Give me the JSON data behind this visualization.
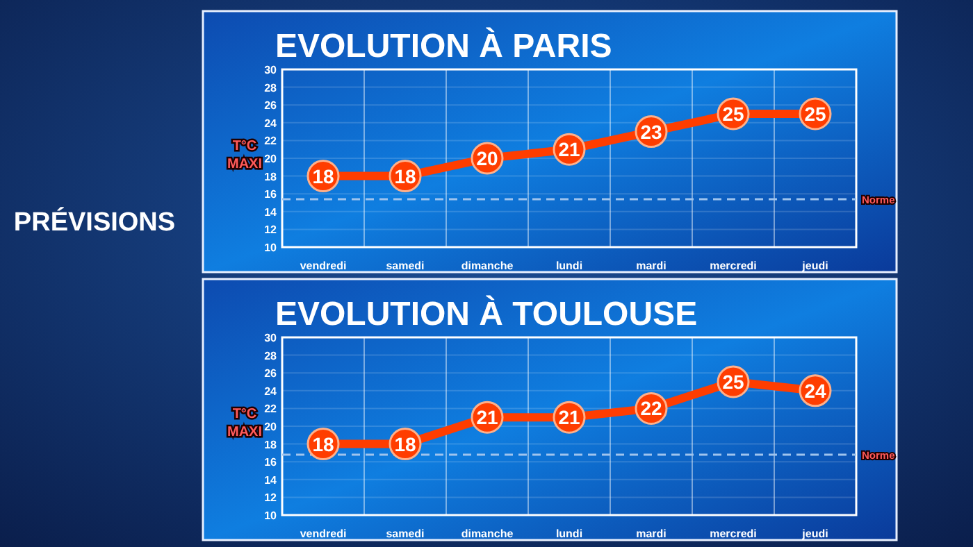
{
  "chart_data": [
    {
      "type": "line",
      "title": "EVOLUTION À PARIS",
      "ylabel": "T°C MAXI",
      "annotations": [
        "PRÉVISIONS"
      ],
      "categories": [
        "vendredi",
        "samedi",
        "dimanche",
        "lundi",
        "mardi",
        "mercredi",
        "jeudi"
      ],
      "series": [
        {
          "color": "#ff3d00",
          "values": [
            18,
            18,
            20,
            21,
            23,
            25,
            25
          ]
        }
      ],
      "ylim": [
        10,
        30
      ],
      "yticks": [
        10,
        12,
        14,
        16,
        18,
        20,
        22,
        24,
        26,
        28,
        30
      ],
      "grid": true,
      "marker": "circle",
      "data_labels": true,
      "ref_lines": [
        {
          "axis": "y",
          "value": 15.4,
          "label": "Norme",
          "color": "#9fc4ee",
          "line_style": "dashed"
        }
      ]
    },
    {
      "type": "line",
      "title": "EVOLUTION À TOULOUSE",
      "ylabel": "T°C MAXI",
      "categories": [
        "vendredi",
        "samedi",
        "dimanche",
        "lundi",
        "mardi",
        "mercredi",
        "jeudi"
      ],
      "series": [
        {
          "color": "#ff3d00",
          "values": [
            18,
            18,
            21,
            21,
            22,
            25,
            24
          ]
        }
      ],
      "ylim": [
        10,
        30
      ],
      "yticks": [
        10,
        12,
        14,
        16,
        18,
        20,
        22,
        24,
        26,
        28,
        30
      ],
      "grid": true,
      "marker": "circle",
      "data_labels": true,
      "ref_lines": [
        {
          "axis": "y",
          "value": 16.8,
          "label": "Norme",
          "color": "#9fc4ee",
          "line_style": "dashed"
        }
      ]
    }
  ]
}
